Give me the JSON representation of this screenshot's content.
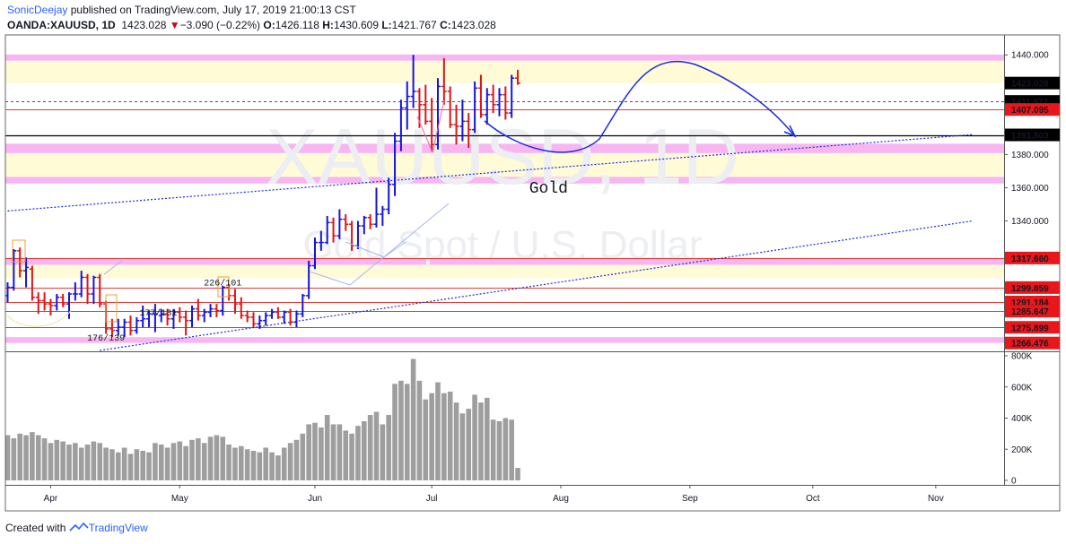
{
  "header": {
    "author": "SonicDeejay",
    "published": "published on TradingView.com, July 17, 2019 21:00:13 CST",
    "symbol": "OANDA:XAUUSD, 1D",
    "last": "1423.028",
    "change_arrow": "▼",
    "change": "−3.090 (−0.22%)",
    "o_label": "O:",
    "o": "1426.118",
    "h_label": "H:",
    "h": "1430.609",
    "l_label": "L:",
    "l": "1421.767",
    "c_label": "C:",
    "c": "1423.028"
  },
  "footer": {
    "created_with": "Created with",
    "brand": "TradingView"
  },
  "colors": {
    "up": "#1414e0",
    "down": "#e01414",
    "volume": "#9e9e9e",
    "resistance_line": "#e53935",
    "pink_zone": "#f7b6f2",
    "yellow_zone": "#fffbd6",
    "trendline": "#1a2be0",
    "projection": "#1a2be0",
    "axis_badge_red": "#e8171b",
    "axis_badge_black": "#000000",
    "watermark": "#eceef2"
  },
  "chart_data": {
    "type": "candlestick",
    "watermark": [
      "XAUUSD, 1D",
      "Gold Spot / U.S. Dollar"
    ],
    "price_axis": {
      "min": 1262,
      "max": 1452,
      "ticks": [
        "1440.000",
        "1380.000",
        "1360.000",
        "1340.000"
      ]
    },
    "volume_axis": {
      "min": 0,
      "max": 800000,
      "ticks": [
        "800K",
        "600K",
        "400K",
        "200K",
        "0"
      ],
      "tick_values": [
        800000,
        600000,
        400000,
        200000,
        0
      ]
    },
    "x_labels": [
      "Apr",
      "May",
      "Jun",
      "Jul",
      "Aug",
      "Sep",
      "Oct",
      "Nov"
    ],
    "x_label_bars": [
      7,
      28,
      50,
      69,
      90,
      111,
      131,
      151
    ],
    "price_badges": [
      {
        "value": 1423.028,
        "label": "1423.028",
        "style": "black"
      },
      {
        "value": 1411.972,
        "label": "1411.972",
        "style": "black"
      },
      {
        "value": 1407.095,
        "label": "1407.095",
        "style": "red"
      },
      {
        "value": 1391.803,
        "label": "1391.803",
        "style": "black"
      },
      {
        "value": 1317.66,
        "label": "1317.660",
        "style": "red"
      },
      {
        "value": 1299.859,
        "label": "1299.859",
        "style": "red"
      },
      {
        "value": 1291.184,
        "label": "1291.184",
        "style": "red"
      },
      {
        "value": 1285.647,
        "label": "1285.647",
        "style": "red"
      },
      {
        "value": 1275.899,
        "label": "1275.899",
        "style": "red"
      },
      {
        "value": 1266.476,
        "label": "1266.476",
        "style": "red"
      }
    ],
    "horizontal_lines": [
      {
        "value": 1407.095,
        "style": "red"
      },
      {
        "value": 1317.66,
        "style": "red"
      },
      {
        "value": 1299.859,
        "style": "red"
      },
      {
        "value": 1291.184,
        "style": "red"
      },
      {
        "value": 1285.647,
        "style": "red"
      },
      {
        "value": 1275.899,
        "style": "red"
      },
      {
        "value": 1391.803,
        "style": "black"
      },
      {
        "value": 1411.972,
        "style": "dashed"
      }
    ],
    "zones": [
      {
        "from": 1436.5,
        "to": 1440.2,
        "kind": "pink"
      },
      {
        "from": 1423.0,
        "to": 1436.5,
        "kind": "yellow"
      },
      {
        "from": 1380.8,
        "to": 1386.5,
        "kind": "pink"
      },
      {
        "from": 1366.5,
        "to": 1380.8,
        "kind": "yellow"
      },
      {
        "from": 1362.5,
        "to": 1366.5,
        "kind": "pink"
      },
      {
        "from": 1313.5,
        "to": 1317.7,
        "kind": "pink"
      },
      {
        "from": 1305.5,
        "to": 1313.5,
        "kind": "yellow"
      },
      {
        "from": 1266.5,
        "to": 1270.0,
        "kind": "pink"
      }
    ],
    "trendlines": [
      {
        "from": [
          0,
          1346
        ],
        "to": [
          157,
          1392
        ]
      },
      {
        "from": [
          15,
          1262
        ],
        "to": [
          157,
          1340
        ]
      }
    ],
    "annotations": [
      {
        "text": "Gold",
        "bar": 88,
        "price": 1357
      },
      {
        "text": "176/139",
        "bar": 16,
        "price": 1268
      },
      {
        "text": "177/131",
        "bar": 24.5,
        "price": 1283
      },
      {
        "text": "226/101",
        "bar": 35,
        "price": 1301
      }
    ],
    "bars": [
      {
        "o": 1295,
        "h": 1303,
        "l": 1291,
        "c": 1300,
        "v": 290000
      },
      {
        "o": 1300,
        "h": 1323,
        "l": 1298,
        "c": 1322,
        "v": 270000
      },
      {
        "o": 1322,
        "h": 1324,
        "l": 1306,
        "c": 1310,
        "v": 300000
      },
      {
        "o": 1310,
        "h": 1318,
        "l": 1300,
        "c": 1312,
        "v": 290000
      },
      {
        "o": 1311,
        "h": 1313,
        "l": 1292,
        "c": 1294,
        "v": 310000
      },
      {
        "o": 1294,
        "h": 1297,
        "l": 1284,
        "c": 1292,
        "v": 290000
      },
      {
        "o": 1292,
        "h": 1297,
        "l": 1286,
        "c": 1290,
        "v": 270000
      },
      {
        "o": 1290,
        "h": 1293,
        "l": 1283,
        "c": 1289,
        "v": 240000
      },
      {
        "o": 1289,
        "h": 1296,
        "l": 1286,
        "c": 1294,
        "v": 260000
      },
      {
        "o": 1294,
        "h": 1296,
        "l": 1288,
        "c": 1290,
        "v": 250000
      },
      {
        "o": 1290,
        "h": 1297,
        "l": 1281,
        "c": 1296,
        "v": 230000
      },
      {
        "o": 1296,
        "h": 1303,
        "l": 1292,
        "c": 1296,
        "v": 240000
      },
      {
        "o": 1296,
        "h": 1310,
        "l": 1294,
        "c": 1306,
        "v": 210000
      },
      {
        "o": 1306,
        "h": 1308,
        "l": 1290,
        "c": 1296,
        "v": 230000
      },
      {
        "o": 1296,
        "h": 1307,
        "l": 1290,
        "c": 1306,
        "v": 250000
      },
      {
        "o": 1306,
        "h": 1308,
        "l": 1288,
        "c": 1290,
        "v": 240000
      },
      {
        "o": 1290,
        "h": 1292,
        "l": 1272,
        "c": 1275,
        "v": 210000
      },
      {
        "o": 1275,
        "h": 1281,
        "l": 1270,
        "c": 1274,
        "v": 200000
      },
      {
        "o": 1274,
        "h": 1281,
        "l": 1271,
        "c": 1276,
        "v": 180000
      },
      {
        "o": 1276,
        "h": 1281,
        "l": 1270,
        "c": 1279,
        "v": 210000
      },
      {
        "o": 1279,
        "h": 1283,
        "l": 1271,
        "c": 1274,
        "v": 170000
      },
      {
        "o": 1274,
        "h": 1282,
        "l": 1272,
        "c": 1280,
        "v": 200000
      },
      {
        "o": 1280,
        "h": 1289,
        "l": 1276,
        "c": 1281,
        "v": 190000
      },
      {
        "o": 1281,
        "h": 1286,
        "l": 1276,
        "c": 1284,
        "v": 180000
      },
      {
        "o": 1284,
        "h": 1290,
        "l": 1273,
        "c": 1284,
        "v": 240000
      },
      {
        "o": 1283,
        "h": 1287,
        "l": 1279,
        "c": 1284,
        "v": 230000
      },
      {
        "o": 1284,
        "h": 1287,
        "l": 1277,
        "c": 1281,
        "v": 210000
      },
      {
        "o": 1281,
        "h": 1287,
        "l": 1275,
        "c": 1285,
        "v": 240000
      },
      {
        "o": 1285,
        "h": 1288,
        "l": 1279,
        "c": 1282,
        "v": 250000
      },
      {
        "o": 1282,
        "h": 1286,
        "l": 1271,
        "c": 1280,
        "v": 220000
      },
      {
        "o": 1280,
        "h": 1289,
        "l": 1276,
        "c": 1287,
        "v": 260000
      },
      {
        "o": 1287,
        "h": 1293,
        "l": 1280,
        "c": 1283,
        "v": 270000
      },
      {
        "o": 1283,
        "h": 1287,
        "l": 1279,
        "c": 1285,
        "v": 240000
      },
      {
        "o": 1285,
        "h": 1290,
        "l": 1282,
        "c": 1287,
        "v": 280000
      },
      {
        "o": 1287,
        "h": 1290,
        "l": 1282,
        "c": 1286,
        "v": 290000
      },
      {
        "o": 1286,
        "h": 1301,
        "l": 1283,
        "c": 1300,
        "v": 280000
      },
      {
        "o": 1300,
        "h": 1302,
        "l": 1292,
        "c": 1295,
        "v": 230000
      },
      {
        "o": 1295,
        "h": 1299,
        "l": 1284,
        "c": 1290,
        "v": 210000
      },
      {
        "o": 1290,
        "h": 1294,
        "l": 1281,
        "c": 1283,
        "v": 220000
      },
      {
        "o": 1283,
        "h": 1286,
        "l": 1279,
        "c": 1282,
        "v": 200000
      },
      {
        "o": 1282,
        "h": 1285,
        "l": 1276,
        "c": 1278,
        "v": 190000
      },
      {
        "o": 1278,
        "h": 1283,
        "l": 1275,
        "c": 1280,
        "v": 180000
      },
      {
        "o": 1280,
        "h": 1285,
        "l": 1277,
        "c": 1283,
        "v": 210000
      },
      {
        "o": 1283,
        "h": 1287,
        "l": 1281,
        "c": 1285,
        "v": 180000
      },
      {
        "o": 1285,
        "h": 1288,
        "l": 1281,
        "c": 1282,
        "v": 160000
      },
      {
        "o": 1282,
        "h": 1286,
        "l": 1278,
        "c": 1285,
        "v": 210000
      },
      {
        "o": 1285,
        "h": 1287,
        "l": 1277,
        "c": 1279,
        "v": 240000
      },
      {
        "o": 1279,
        "h": 1286,
        "l": 1276,
        "c": 1284,
        "v": 260000
      },
      {
        "o": 1284,
        "h": 1296,
        "l": 1282,
        "c": 1295,
        "v": 300000
      },
      {
        "o": 1295,
        "h": 1316,
        "l": 1293,
        "c": 1313,
        "v": 360000
      },
      {
        "o": 1313,
        "h": 1330,
        "l": 1311,
        "c": 1327,
        "v": 370000
      },
      {
        "o": 1327,
        "h": 1334,
        "l": 1322,
        "c": 1327,
        "v": 340000
      },
      {
        "o": 1327,
        "h": 1343,
        "l": 1326,
        "c": 1339,
        "v": 420000
      },
      {
        "o": 1339,
        "h": 1342,
        "l": 1327,
        "c": 1331,
        "v": 360000
      },
      {
        "o": 1331,
        "h": 1347,
        "l": 1329,
        "c": 1341,
        "v": 360000
      },
      {
        "o": 1341,
        "h": 1344,
        "l": 1334,
        "c": 1338,
        "v": 320000
      },
      {
        "o": 1338,
        "h": 1340,
        "l": 1322,
        "c": 1325,
        "v": 300000
      },
      {
        "o": 1325,
        "h": 1340,
        "l": 1323,
        "c": 1337,
        "v": 350000
      },
      {
        "o": 1337,
        "h": 1343,
        "l": 1332,
        "c": 1342,
        "v": 380000
      },
      {
        "o": 1342,
        "h": 1344,
        "l": 1335,
        "c": 1338,
        "v": 420000
      },
      {
        "o": 1338,
        "h": 1360,
        "l": 1336,
        "c": 1344,
        "v": 440000
      },
      {
        "o": 1344,
        "h": 1349,
        "l": 1337,
        "c": 1347,
        "v": 360000
      },
      {
        "o": 1347,
        "h": 1366,
        "l": 1344,
        "c": 1362,
        "v": 420000
      },
      {
        "o": 1362,
        "h": 1393,
        "l": 1355,
        "c": 1388,
        "v": 620000
      },
      {
        "o": 1388,
        "h": 1413,
        "l": 1382,
        "c": 1408,
        "v": 640000
      },
      {
        "o": 1408,
        "h": 1424,
        "l": 1395,
        "c": 1415,
        "v": 620000
      },
      {
        "o": 1415,
        "h": 1440,
        "l": 1408,
        "c": 1418,
        "v": 780000
      },
      {
        "o": 1418,
        "h": 1420,
        "l": 1396,
        "c": 1410,
        "v": 640000
      },
      {
        "o": 1410,
        "h": 1422,
        "l": 1398,
        "c": 1400,
        "v": 520000
      },
      {
        "o": 1400,
        "h": 1414,
        "l": 1382,
        "c": 1386,
        "v": 560000
      },
      {
        "o": 1386,
        "h": 1426,
        "l": 1383,
        "c": 1421,
        "v": 630000
      },
      {
        "o": 1421,
        "h": 1438,
        "l": 1410,
        "c": 1418,
        "v": 560000
      },
      {
        "o": 1418,
        "h": 1421,
        "l": 1396,
        "c": 1398,
        "v": 570000
      },
      {
        "o": 1398,
        "h": 1410,
        "l": 1386,
        "c": 1397,
        "v": 500000
      },
      {
        "o": 1397,
        "h": 1413,
        "l": 1388,
        "c": 1400,
        "v": 430000
      },
      {
        "o": 1400,
        "h": 1405,
        "l": 1384,
        "c": 1395,
        "v": 460000
      },
      {
        "o": 1395,
        "h": 1424,
        "l": 1393,
        "c": 1420,
        "v": 550000
      },
      {
        "o": 1420,
        "h": 1428,
        "l": 1402,
        "c": 1404,
        "v": 500000
      },
      {
        "o": 1404,
        "h": 1420,
        "l": 1398,
        "c": 1416,
        "v": 530000
      },
      {
        "o": 1416,
        "h": 1422,
        "l": 1405,
        "c": 1410,
        "v": 390000
      },
      {
        "o": 1410,
        "h": 1420,
        "l": 1403,
        "c": 1416,
        "v": 380000
      },
      {
        "o": 1416,
        "h": 1421,
        "l": 1401,
        "c": 1405,
        "v": 400000
      },
      {
        "o": 1405,
        "h": 1428,
        "l": 1402,
        "c": 1426,
        "v": 390000
      },
      {
        "o": 1426,
        "h": 1431,
        "l": 1422,
        "c": 1423,
        "v": 80000
      }
    ]
  }
}
